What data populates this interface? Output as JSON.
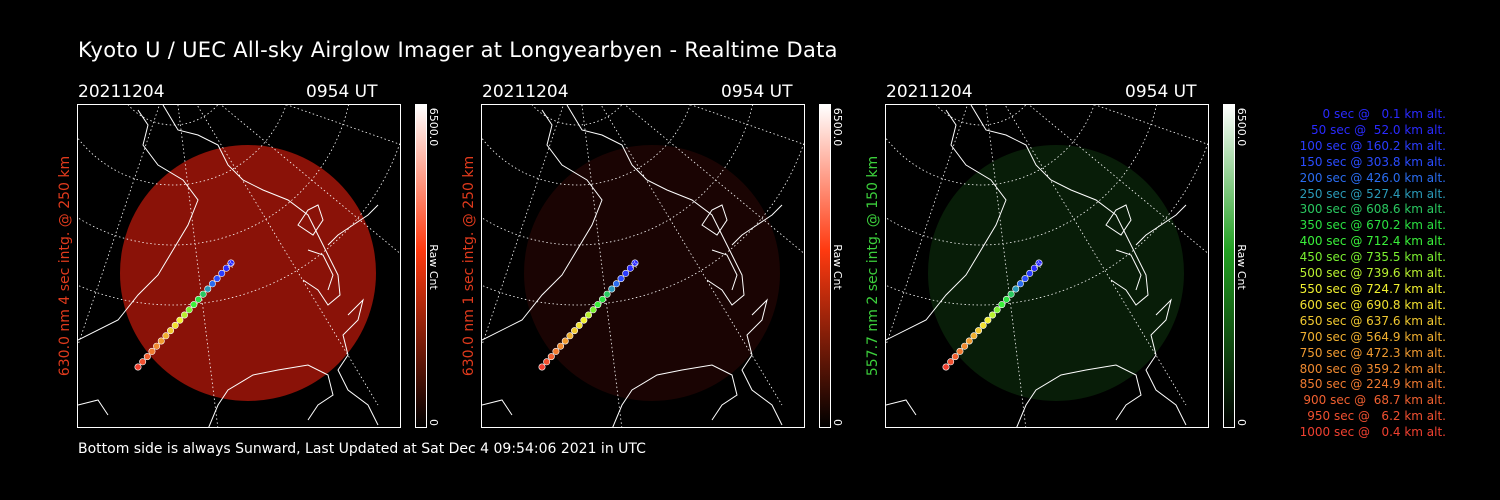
{
  "title": "Kyoto U / UEC All-sky Airglow Imager at Longyearbyen - Realtime Data",
  "footer": "Bottom side is always Sunward, Last Updated at Sat Dec  4 09:54:06 2021 in UTC",
  "panels": [
    {
      "date": "20211204",
      "time": "0954 UT",
      "side_label": "630.0 nm 4 sec intg. @ 250 km",
      "label_color": "#e03a1c",
      "cbar_max": "6500.0",
      "cbar_unit": "Raw Cnt",
      "cbar_min": "0",
      "glow_color": "#8a1208",
      "glow_level": 1.0,
      "cbar_end": "#ff3a10"
    },
    {
      "date": "20211204",
      "time": "0954 UT",
      "side_label": "630.0 nm 1 sec intg. @ 250 km",
      "label_color": "#e03a1c",
      "cbar_max": "6500.0",
      "cbar_unit": "Raw Cnt",
      "cbar_min": "0",
      "glow_color": "#3a0806",
      "glow_level": 0.45,
      "cbar_end": "#ff3a10"
    },
    {
      "date": "20211204",
      "time": "0954 UT",
      "side_label": "557.7 nm 2 sec intg. @ 150 km",
      "label_color": "#3ccf3c",
      "cbar_max": "6500.0",
      "cbar_unit": "Raw Cnt",
      "cbar_min": "0",
      "glow_color": "#0f3a0f",
      "glow_level": 0.5,
      "cbar_end": "#22a022"
    }
  ],
  "legend": [
    {
      "text": "0 sec @   0.1 km alt.",
      "color": "#2a2aff"
    },
    {
      "text": "50 sec @  52.0 km alt.",
      "color": "#2a2aff"
    },
    {
      "text": "100 sec @ 160.2 km alt.",
      "color": "#2a3cff"
    },
    {
      "text": "150 sec @ 303.8 km alt.",
      "color": "#2a4cff"
    },
    {
      "text": "200 sec @ 426.0 km alt.",
      "color": "#2a6cf0"
    },
    {
      "text": "250 sec @ 527.4 km alt.",
      "color": "#2a9ab8"
    },
    {
      "text": "300 sec @ 608.6 km alt.",
      "color": "#2ac860"
    },
    {
      "text": "350 sec @ 670.2 km alt.",
      "color": "#2ae040"
    },
    {
      "text": "400 sec @ 712.4 km alt.",
      "color": "#3af03a"
    },
    {
      "text": "450 sec @ 735.5 km alt.",
      "color": "#7af030"
    },
    {
      "text": "500 sec @ 739.6 km alt.",
      "color": "#b8f030"
    },
    {
      "text": "550 sec @ 724.7 km alt.",
      "color": "#f0f030"
    },
    {
      "text": "600 sec @ 690.8 km alt.",
      "color": "#f0e030"
    },
    {
      "text": "650 sec @ 637.6 km alt.",
      "color": "#f0c830"
    },
    {
      "text": "700 sec @ 564.9 km alt.",
      "color": "#f0b030"
    },
    {
      "text": "750 sec @ 472.3 km alt.",
      "color": "#f09a30"
    },
    {
      "text": "800 sec @ 359.2 km alt.",
      "color": "#f08a30"
    },
    {
      "text": "850 sec @ 224.9 km alt.",
      "color": "#f07a30"
    },
    {
      "text": "900 sec @  68.7 km alt.",
      "color": "#f06030"
    },
    {
      "text": "950 sec @   6.2 km alt.",
      "color": "#f05030"
    },
    {
      "text": "1000 sec @   0.4 km alt.",
      "color": "#f04030"
    }
  ]
}
